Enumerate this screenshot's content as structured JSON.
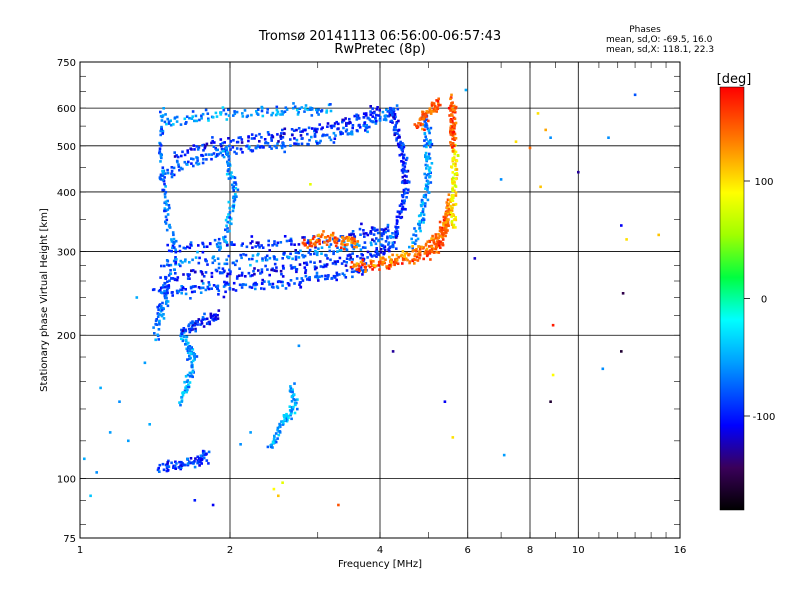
{
  "chart_data": {
    "type": "scatter",
    "title": "Tromsø 20141113 06:56:00-06:57:43",
    "subtitle": "RwPretec (8p)",
    "xlabel": "Frequency [MHz]",
    "ylabel": "Stationary phase Virtual Height [km]",
    "x_scale": "log",
    "y_scale": "log",
    "xlim": [
      1,
      16
    ],
    "ylim": [
      75,
      750
    ],
    "x_ticks": [
      "1",
      "2",
      "4",
      "6",
      "8",
      "10",
      "16"
    ],
    "x_tick_values": [
      1,
      2,
      4,
      6,
      8,
      10,
      16
    ],
    "y_ticks": [
      "750",
      "600",
      "500",
      "400",
      "300",
      "200",
      "100",
      "75"
    ],
    "y_tick_values": [
      750,
      600,
      500,
      400,
      300,
      200,
      100,
      75
    ],
    "grid": true,
    "legend": {
      "title": "Phases",
      "line1": "mean, sd,O: -69.5, 16.0",
      "line2": "mean, sd,X: 118.1, 22.3"
    },
    "colorbar": {
      "unit": "[deg]",
      "ticks": [
        "100",
        "0",
        "-100"
      ],
      "tick_values": [
        100,
        0,
        -100
      ],
      "range": [
        -180,
        180
      ]
    },
    "traces": [
      {
        "name": "",
        "phase": -85,
        "points": [
          [
            1.42,
            245
          ],
          [
            1.6,
            248
          ],
          [
            1.8,
            250
          ],
          [
            2.0,
            252
          ],
          [
            2.3,
            254
          ],
          [
            2.6,
            257
          ],
          [
            3.0,
            262
          ],
          [
            3.4,
            268
          ],
          [
            3.8,
            275
          ]
        ]
      },
      {
        "name": "",
        "phase": -100,
        "points": [
          [
            1.45,
            265
          ],
          [
            1.7,
            268
          ],
          [
            2.0,
            270
          ],
          [
            2.4,
            273
          ],
          [
            2.8,
            278
          ],
          [
            3.2,
            285
          ],
          [
            3.6,
            292
          ],
          [
            4.0,
            300
          ],
          [
            4.3,
            310
          ]
        ]
      },
      {
        "name": "",
        "phase": -70,
        "points": [
          [
            1.45,
            285
          ],
          [
            1.8,
            287
          ],
          [
            2.2,
            290
          ],
          [
            2.6,
            293
          ],
          [
            3.0,
            298
          ],
          [
            3.5,
            305
          ],
          [
            4.0,
            312
          ],
          [
            4.3,
            320
          ]
        ]
      },
      {
        "name": "",
        "phase": -95,
        "points": [
          [
            1.5,
            305
          ],
          [
            1.9,
            308
          ],
          [
            2.3,
            310
          ],
          [
            2.8,
            315
          ],
          [
            3.3,
            322
          ],
          [
            3.8,
            330
          ],
          [
            4.2,
            335
          ]
        ]
      },
      {
        "name": "",
        "phase": -80,
        "points": [
          [
            1.45,
            430
          ],
          [
            1.6,
            455
          ],
          [
            1.8,
            475
          ],
          [
            2.0,
            490
          ],
          [
            2.3,
            500
          ],
          [
            2.6,
            505
          ],
          [
            3.0,
            515
          ],
          [
            3.4,
            530
          ],
          [
            3.8,
            555
          ],
          [
            4.1,
            580
          ],
          [
            4.3,
            600
          ]
        ]
      },
      {
        "name": "",
        "phase": -100,
        "points": [
          [
            1.55,
            480
          ],
          [
            1.8,
            500
          ],
          [
            2.1,
            520
          ],
          [
            2.5,
            530
          ],
          [
            2.9,
            540
          ],
          [
            3.3,
            555
          ],
          [
            3.7,
            575
          ],
          [
            4.0,
            595
          ]
        ]
      },
      {
        "name": "",
        "phase": -60,
        "points": [
          [
            1.5,
            560
          ],
          [
            1.7,
            570
          ],
          [
            2.0,
            585
          ],
          [
            2.4,
            590
          ],
          [
            2.8,
            595
          ],
          [
            3.2,
            600
          ]
        ]
      },
      {
        "name": "",
        "phase": -75,
        "points": [
          [
            1.42,
            200
          ],
          [
            1.45,
            225
          ],
          [
            1.5,
            250
          ],
          [
            1.55,
            300
          ],
          [
            1.5,
            350
          ],
          [
            1.48,
            400
          ],
          [
            1.45,
            500
          ],
          [
            1.47,
            600
          ]
        ]
      },
      {
        "name": "",
        "phase": -60,
        "points": [
          [
            1.9,
            300
          ],
          [
            2.0,
            350
          ],
          [
            2.05,
            400
          ],
          [
            2.0,
            450
          ],
          [
            1.95,
            500
          ]
        ]
      },
      {
        "name": "",
        "phase": -100,
        "points": [
          [
            4.3,
            320
          ],
          [
            4.4,
            360
          ],
          [
            4.5,
            400
          ],
          [
            4.5,
            450
          ],
          [
            4.4,
            500
          ],
          [
            4.3,
            550
          ],
          [
            4.2,
            600
          ]
        ]
      },
      {
        "name": "",
        "phase": -60,
        "points": [
          [
            4.6,
            300
          ],
          [
            4.8,
            340
          ],
          [
            4.9,
            380
          ],
          [
            5.0,
            420
          ],
          [
            5.0,
            470
          ],
          [
            5.0,
            520
          ],
          [
            4.9,
            580
          ]
        ]
      },
      {
        "name": "",
        "phase": 155,
        "points": [
          [
            3.5,
            276
          ],
          [
            4.0,
            280
          ],
          [
            4.4,
            285
          ],
          [
            4.8,
            292
          ],
          [
            5.1,
            300
          ],
          [
            5.3,
            315
          ],
          [
            5.4,
            335
          ],
          [
            5.5,
            360
          ]
        ]
      },
      {
        "name": "",
        "phase": 135,
        "points": [
          [
            3.6,
            282
          ],
          [
            4.1,
            288
          ],
          [
            4.6,
            296
          ],
          [
            5.0,
            310
          ],
          [
            5.3,
            330
          ],
          [
            5.45,
            355
          ],
          [
            5.55,
            380
          ]
        ]
      },
      {
        "name": "",
        "phase": 95,
        "points": [
          [
            5.6,
            340
          ],
          [
            5.62,
            380
          ],
          [
            5.65,
            420
          ],
          [
            5.65,
            460
          ],
          [
            5.62,
            500
          ]
        ]
      },
      {
        "name": "",
        "phase": 150,
        "points": [
          [
            5.6,
            500
          ],
          [
            5.6,
            540
          ],
          [
            5.62,
            580
          ],
          [
            5.6,
            620
          ]
        ]
      },
      {
        "name": "",
        "phase": 150,
        "points": [
          [
            4.7,
            550
          ],
          [
            4.9,
            575
          ],
          [
            5.1,
            600
          ],
          [
            5.25,
            620
          ]
        ]
      },
      {
        "name": "",
        "phase": 140,
        "points": [
          [
            2.8,
            310
          ],
          [
            3.0,
            315
          ],
          [
            3.2,
            320
          ],
          [
            3.4,
            315
          ],
          [
            3.6,
            318
          ]
        ]
      },
      {
        "name": "",
        "phase": -90,
        "points": [
          [
            1.45,
            105
          ],
          [
            1.55,
            106
          ],
          [
            1.65,
            108
          ],
          [
            1.75,
            110
          ],
          [
            1.8,
            112
          ]
        ]
      },
      {
        "name": "",
        "phase": -55,
        "points": [
          [
            1.6,
            145
          ],
          [
            1.65,
            160
          ],
          [
            1.7,
            175
          ],
          [
            1.65,
            190
          ],
          [
            1.6,
            205
          ]
        ]
      },
      {
        "name": "",
        "phase": -55,
        "points": [
          [
            2.4,
            115
          ],
          [
            2.5,
            125
          ],
          [
            2.6,
            135
          ],
          [
            2.7,
            145
          ],
          [
            2.65,
            155
          ]
        ]
      },
      {
        "name": "",
        "phase": -100,
        "points": [
          [
            1.6,
            205
          ],
          [
            1.7,
            210
          ],
          [
            1.8,
            215
          ],
          [
            1.9,
            220
          ]
        ]
      }
    ],
    "points": [
      [
        1.02,
        110,
        -50
      ],
      [
        1.05,
        92,
        -40
      ],
      [
        1.08,
        103,
        -60
      ],
      [
        1.1,
        155,
        -50
      ],
      [
        1.15,
        125,
        -55
      ],
      [
        1.2,
        145,
        -60
      ],
      [
        1.25,
        120,
        -55
      ],
      [
        1.3,
        240,
        -50
      ],
      [
        1.35,
        175,
        -55
      ],
      [
        1.38,
        130,
        -50
      ],
      [
        1.7,
        90,
        -100
      ],
      [
        1.85,
        88,
        -110
      ],
      [
        2.1,
        118,
        -60
      ],
      [
        2.2,
        125,
        -55
      ],
      [
        2.45,
        95,
        90
      ],
      [
        2.5,
        92,
        110
      ],
      [
        2.55,
        98,
        80
      ],
      [
        3.3,
        88,
        150
      ],
      [
        2.75,
        190,
        -60
      ],
      [
        2.9,
        415,
        80
      ],
      [
        4.25,
        185,
        -130
      ],
      [
        5.4,
        145,
        -110
      ],
      [
        5.6,
        122,
        100
      ],
      [
        6.2,
        290,
        -120
      ],
      [
        7.0,
        425,
        -60
      ],
      [
        7.1,
        112,
        -55
      ],
      [
        7.5,
        510,
        100
      ],
      [
        8.0,
        495,
        140
      ],
      [
        8.3,
        585,
        100
      ],
      [
        8.4,
        410,
        110
      ],
      [
        8.6,
        540,
        120
      ],
      [
        8.8,
        520,
        -60
      ],
      [
        8.9,
        210,
        170
      ],
      [
        8.9,
        165,
        90
      ],
      [
        8.8,
        145,
        -160
      ],
      [
        10.0,
        440,
        -130
      ],
      [
        11.2,
        170,
        -60
      ],
      [
        11.5,
        520,
        -60
      ],
      [
        12.2,
        340,
        -110
      ],
      [
        12.3,
        245,
        -150
      ],
      [
        12.2,
        185,
        -160
      ],
      [
        13.0,
        640,
        -80
      ],
      [
        14.5,
        325,
        110
      ],
      [
        12.5,
        318,
        100
      ],
      [
        5.95,
        655,
        -50
      ]
    ]
  }
}
